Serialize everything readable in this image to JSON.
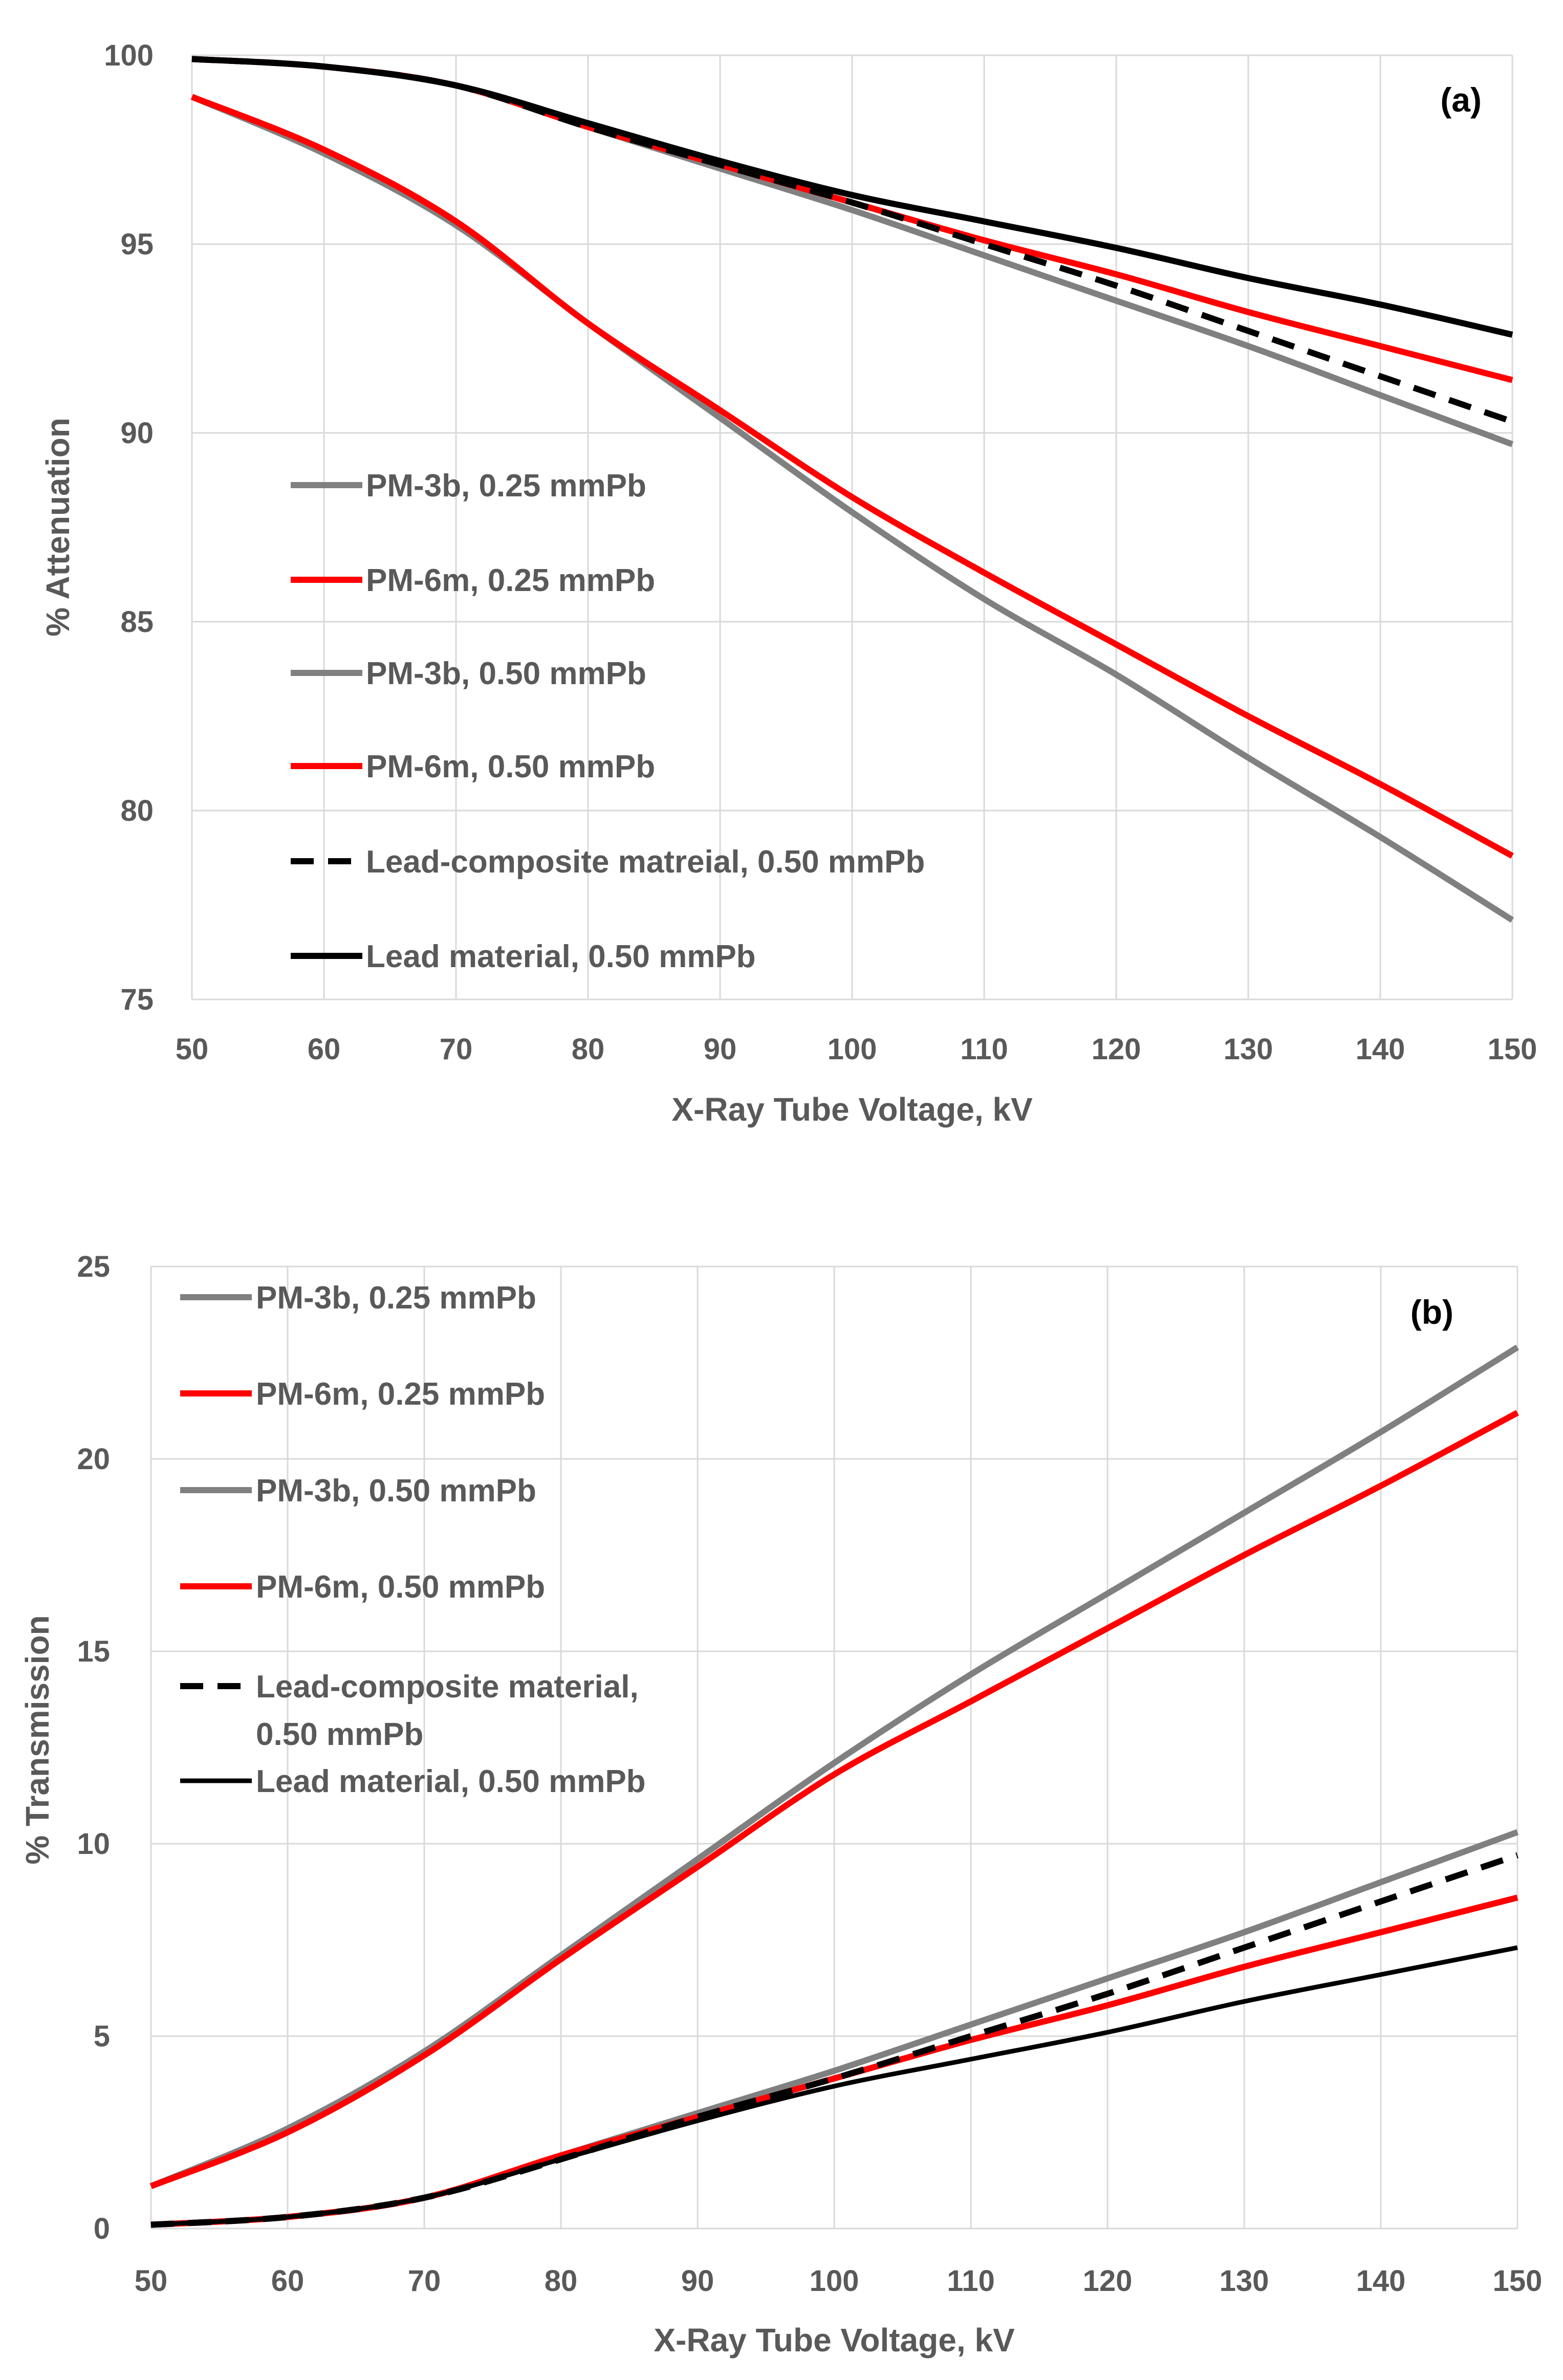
{
  "chart_data": [
    {
      "type": "line",
      "panel_label": "(a)",
      "xlabel": "X-Ray Tube Voltage, kV",
      "ylabel": "% Attenuation",
      "xlim": [
        50,
        150
      ],
      "ylim": [
        75,
        100
      ],
      "xticks": [
        "50",
        "60",
        "70",
        "80",
        "90",
        "100",
        "110",
        "120",
        "130",
        "140",
        "150"
      ],
      "yticks": [
        "75",
        "80",
        "85",
        "90",
        "95",
        "100"
      ],
      "grid": true,
      "legend_position": "center-left",
      "x": [
        50,
        60,
        70,
        80,
        90,
        100,
        110,
        120,
        130,
        140,
        150
      ],
      "series": [
        {
          "name": "PM-3b, 0.25 mmPb",
          "color": "#808080",
          "dash": "solid",
          "values": [
            98.9,
            97.4,
            95.5,
            92.9,
            90.4,
            87.9,
            85.6,
            83.6,
            81.4,
            79.3,
            77.1
          ]
        },
        {
          "name": "PM-6m, 0.25 mmPb",
          "color": "#ff0000",
          "dash": "solid",
          "values": [
            98.9,
            97.5,
            95.6,
            92.9,
            90.6,
            88.3,
            86.3,
            84.4,
            82.5,
            80.7,
            78.8
          ]
        },
        {
          "name": "PM-3b, 0.50 mmPb",
          "color": "#808080",
          "dash": "solid",
          "values": [
            99.9,
            99.7,
            99.2,
            98.1,
            97.0,
            95.9,
            94.7,
            93.5,
            92.3,
            91.0,
            89.7
          ]
        },
        {
          "name": "PM-6m, 0.50 mmPb",
          "color": "#ff0000",
          "dash": "solid",
          "values": [
            99.9,
            99.7,
            99.2,
            98.1,
            97.1,
            96.1,
            95.1,
            94.2,
            93.2,
            92.3,
            91.4
          ]
        },
        {
          "name": "Lead-composite matreial, 0.50 mmPb",
          "color": "#000000",
          "dash": "dashed",
          "values": [
            99.9,
            99.7,
            99.2,
            98.1,
            97.1,
            96.1,
            95.0,
            93.9,
            92.7,
            91.5,
            90.3
          ]
        },
        {
          "name": "Lead material, 0.50 mmPb",
          "color": "#000000",
          "dash": "solid",
          "values": [
            99.9,
            99.7,
            99.2,
            98.2,
            97.2,
            96.3,
            95.6,
            94.9,
            94.1,
            93.4,
            92.6
          ]
        }
      ]
    },
    {
      "type": "line",
      "panel_label": "(b)",
      "xlabel": "X-Ray Tube Voltage, kV",
      "ylabel": "% Transmission",
      "xlim": [
        50,
        150
      ],
      "ylim": [
        0,
        25
      ],
      "xticks": [
        "50",
        "60",
        "70",
        "80",
        "90",
        "100",
        "110",
        "120",
        "130",
        "140",
        "150"
      ],
      "yticks": [
        "0",
        "5",
        "10",
        "15",
        "20",
        "25"
      ],
      "grid": true,
      "legend_position": "top-left",
      "x": [
        50,
        60,
        70,
        80,
        90,
        100,
        110,
        120,
        130,
        140,
        150
      ],
      "series": [
        {
          "name": "PM-3b, 0.25 mmPb",
          "color": "#808080",
          "dash": "solid",
          "values": [
            1.1,
            2.6,
            4.6,
            7.1,
            9.6,
            12.1,
            14.4,
            16.5,
            18.6,
            20.7,
            22.9
          ]
        },
        {
          "name": "PM-6m, 0.25 mmPb",
          "color": "#ff0000",
          "dash": "solid",
          "values": [
            1.1,
            2.5,
            4.5,
            7.0,
            9.4,
            11.8,
            13.7,
            15.6,
            17.5,
            19.3,
            21.2
          ]
        },
        {
          "name": "PM-3b, 0.50 mmPb",
          "color": "#808080",
          "dash": "solid",
          "values": [
            0.1,
            0.3,
            0.8,
            1.9,
            3.0,
            4.1,
            5.3,
            6.5,
            7.7,
            9.0,
            10.3
          ]
        },
        {
          "name": "PM-6m, 0.50 mmPb",
          "color": "#ff0000",
          "dash": "solid",
          "values": [
            0.1,
            0.3,
            0.8,
            1.9,
            2.9,
            3.9,
            4.9,
            5.8,
            6.8,
            7.7,
            8.6
          ]
        },
        {
          "name_line1": "Lead-composite material,",
          "name_line2": "0.50 mmPb",
          "color": "#000000",
          "dash": "dashed",
          "values": [
            0.1,
            0.3,
            0.8,
            1.8,
            2.9,
            3.9,
            5.0,
            6.1,
            7.3,
            8.5,
            9.7
          ]
        },
        {
          "name": "Lead material, 0.50 mmPb",
          "color": "#000000",
          "dash": "solid",
          "values": [
            0.1,
            0.3,
            0.8,
            1.8,
            2.8,
            3.7,
            4.4,
            5.1,
            5.9,
            6.6,
            7.3
          ]
        }
      ]
    }
  ]
}
